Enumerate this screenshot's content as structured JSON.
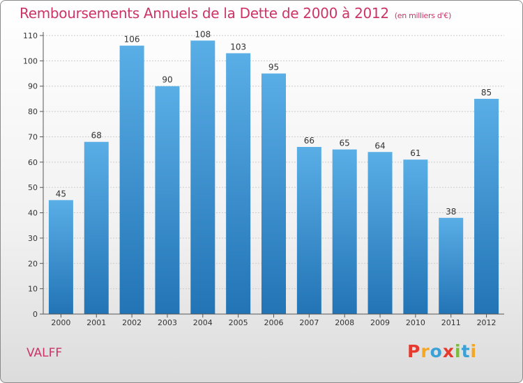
{
  "header": {
    "title": "Remboursements Annuels de la Dette de 2000 à 2012",
    "unit": "(en milliers d'€)"
  },
  "commune": "VALFF",
  "logo": {
    "text": "Proxiti",
    "letter_colors": [
      "#e63a2e",
      "#f5a623",
      "#3aa0d8",
      "#e63a2e",
      "#7bbd3a",
      "#3aa0d8",
      "#f5a623"
    ]
  },
  "colors": {
    "bar_top": "#5aaee6",
    "bar_bottom": "#2274b5",
    "title": "#cc3366",
    "grid": "#cccccc",
    "axis": "#555555"
  },
  "chart_data": {
    "type": "bar",
    "categories": [
      "2000",
      "2001",
      "2002",
      "2003",
      "2004",
      "2005",
      "2006",
      "2007",
      "2008",
      "2009",
      "2010",
      "2011",
      "2012"
    ],
    "values": [
      45,
      68,
      106,
      90,
      108,
      103,
      95,
      66,
      65,
      64,
      61,
      38,
      85
    ],
    "ylim": [
      0,
      110
    ],
    "yticks": [
      0,
      10,
      20,
      30,
      40,
      50,
      60,
      70,
      80,
      90,
      100,
      110
    ],
    "grid": true,
    "data_labels": true
  }
}
